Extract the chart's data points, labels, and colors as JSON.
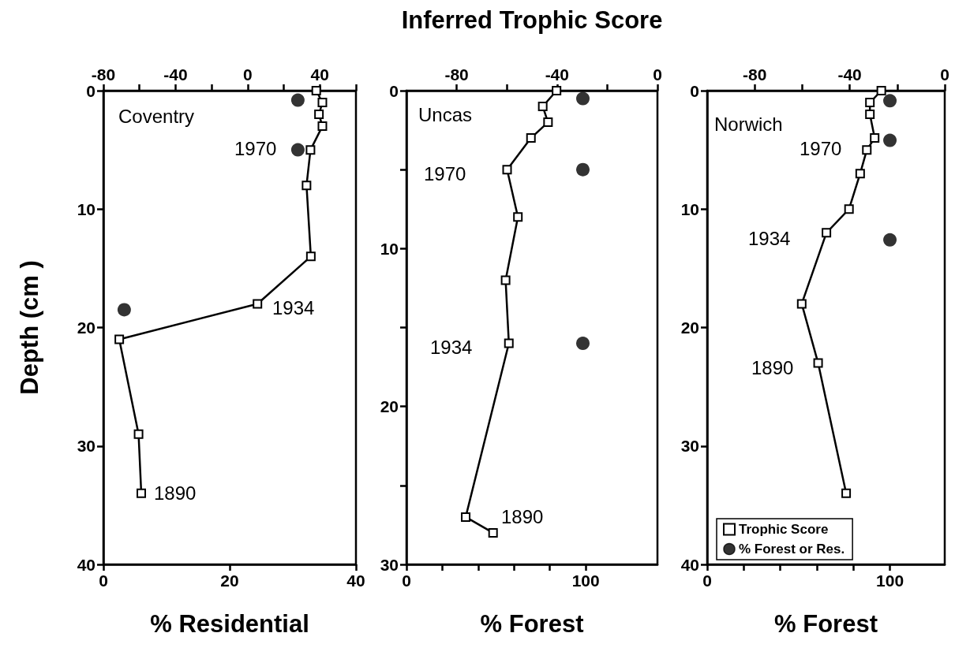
{
  "chart_data": [
    {
      "type": "line",
      "ylabel": "Depth (cm )",
      "xlabel": "% Residential",
      "xlim": [
        0,
        40
      ],
      "xticks": [
        0,
        20,
        40
      ],
      "x2lim": [
        -80,
        60
      ],
      "x2ticks": [
        -80,
        {
          "value": -60,
          "label": null
        },
        -40,
        {
          "value": -20,
          "label": null
        },
        0,
        {
          "value": 20,
          "label": null
        },
        40,
        {
          "value": 60,
          "label": null
        }
      ],
      "ylim": [
        40,
        0
      ],
      "yticks": [
        0,
        10,
        20,
        30,
        40
      ],
      "grid": false,
      "legend": false,
      "series": [
        {
          "axis": "x2",
          "color": "#000000",
          "marker": "square",
          "line_style": "solid",
          "x": [
            38,
            41.4,
            39.5,
            41.4,
            34.8,
            32.6,
            35,
            5.4,
            -71.2,
            -60.5,
            -59
          ],
          "values": [
            0,
            1,
            2,
            3,
            5,
            8,
            14,
            18,
            21,
            29,
            34
          ]
        },
        {
          "type": "scatter",
          "color": "#000000",
          "marker": "circle",
          "x": [
            30.8,
            30.8,
            3.3
          ],
          "values": [
            0.8,
            5,
            18.5
          ]
        }
      ],
      "annotations": [
        "Coventry",
        "1970",
        "1934",
        "1890"
      ]
    },
    {
      "type": "line",
      "xlabel": "% Forest",
      "x2label": "Inferred Trophic Score",
      "xlim": [
        0,
        140
      ],
      "xticks": [
        0,
        {
          "value": 20,
          "label": null
        },
        {
          "value": 40,
          "label": null
        },
        {
          "value": 60,
          "label": null
        },
        {
          "value": 80,
          "label": null
        },
        100
      ],
      "x2lim": [
        -100,
        0
      ],
      "x2ticks": [
        -80,
        {
          "value": -60,
          "label": null
        },
        -40,
        {
          "value": -20,
          "label": null
        },
        0
      ],
      "ylim": [
        30,
        0
      ],
      "yticks": [
        0,
        {
          "value": 5,
          "label": null
        },
        10,
        {
          "value": 15,
          "label": null
        },
        20,
        {
          "value": 25,
          "label": null
        },
        30
      ],
      "grid": false,
      "legend": false,
      "series": [
        {
          "axis": "x2",
          "color": "#000000",
          "marker": "square",
          "line_style": "solid",
          "x": [
            -40.2,
            -45.7,
            -43.6,
            -50.4,
            -59.9,
            -55.6,
            -60.5,
            -59.2,
            -76.4,
            -65.5
          ],
          "values": [
            0,
            1,
            2,
            3,
            5,
            8,
            12,
            16,
            27,
            28
          ]
        },
        {
          "type": "scatter",
          "color": "#000000",
          "marker": "circle",
          "x": [
            98.4,
            98.4,
            98.4
          ],
          "values": [
            0.5,
            5,
            16
          ]
        }
      ],
      "annotations": [
        "Uncas",
        "1970",
        "1934",
        "1890"
      ]
    },
    {
      "type": "line",
      "xlabel": "% Forest",
      "xlim": [
        0,
        130
      ],
      "xticks": [
        0,
        {
          "value": 20,
          "label": null
        },
        {
          "value": 40,
          "label": null
        },
        {
          "value": 60,
          "label": null
        },
        {
          "value": 80,
          "label": null
        },
        100
      ],
      "x2lim": [
        -100,
        0
      ],
      "x2ticks": [
        -80,
        {
          "value": -60,
          "label": null
        },
        -40,
        {
          "value": -20,
          "label": null
        },
        0
      ],
      "ylim": [
        40,
        0
      ],
      "yticks": [
        0,
        10,
        20,
        30,
        40
      ],
      "grid": false,
      "legend": "bottom left",
      "series": [
        {
          "axis": "x2",
          "name": "Trophic Score",
          "color": "#000000",
          "marker": "square",
          "line_style": "solid",
          "x": [
            -26.7,
            -31.5,
            -31.5,
            -29.5,
            -32.8,
            -35.6,
            -40.3,
            -49.8,
            -60.2,
            -53.3,
            -41.5
          ],
          "values": [
            0,
            1,
            2,
            4,
            5,
            7,
            10,
            12,
            18,
            23,
            34
          ]
        },
        {
          "type": "scatter",
          "name": "% Forest or Res.",
          "color": "#000000",
          "marker": "circle",
          "x": [
            100,
            100,
            100
          ],
          "values": [
            0.85,
            4.2,
            12.6
          ]
        }
      ],
      "annotations": [
        "Norwich",
        "1970",
        "1934",
        "1890"
      ]
    }
  ]
}
